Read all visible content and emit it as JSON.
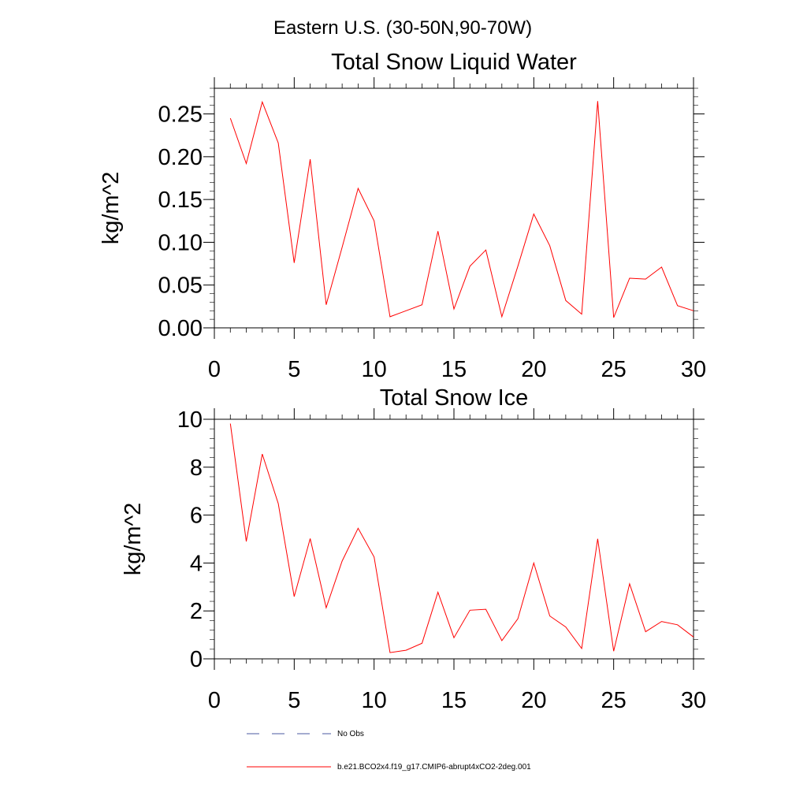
{
  "figure": {
    "title": "Eastern U.S. (30-50N,90-70W)"
  },
  "chart_data": [
    {
      "type": "line",
      "title": "Total Snow Liquid Water",
      "xlabel": "",
      "ylabel": "kg/m^2",
      "xlim": [
        0,
        30
      ],
      "ylim": [
        0,
        0.28
      ],
      "x_ticks": [
        0,
        5,
        10,
        15,
        20,
        25,
        30
      ],
      "x_tick_labels": [
        "0",
        "5",
        "10",
        "15",
        "20",
        "25",
        "30"
      ],
      "y_ticks": [
        0,
        0.05,
        0.1,
        0.15,
        0.2,
        0.25
      ],
      "y_tick_labels": [
        "0.00",
        "0.05",
        "0.10",
        "0.15",
        "0.20",
        "0.25"
      ],
      "grid": false,
      "series": [
        {
          "name": "b.e21.BCO2x4.f19_g17.CMIP6-abrupt4xCO2-2deg.001",
          "color": "#ff0000",
          "x": [
            1,
            2,
            3,
            4,
            5,
            6,
            7,
            8,
            9,
            10,
            11,
            12,
            13,
            14,
            15,
            16,
            17,
            18,
            19,
            20,
            21,
            22,
            23,
            24,
            25,
            26,
            27,
            28,
            29,
            30
          ],
          "values": [
            0.245,
            0.192,
            0.264,
            0.216,
            0.076,
            0.197,
            0.027,
            0.094,
            0.163,
            0.125,
            0.013,
            0.02,
            0.027,
            0.113,
            0.022,
            0.072,
            0.091,
            0.013,
            0.072,
            0.133,
            0.096,
            0.032,
            0.016,
            0.265,
            0.012,
            0.058,
            0.057,
            0.071,
            0.026,
            0.02
          ]
        }
      ]
    },
    {
      "type": "line",
      "title": "Total Snow Ice",
      "xlabel": "",
      "ylabel": "kg/m^2",
      "xlim": [
        0,
        30
      ],
      "ylim": [
        0,
        10
      ],
      "x_ticks": [
        0,
        5,
        10,
        15,
        20,
        25,
        30
      ],
      "x_tick_labels": [
        "0",
        "5",
        "10",
        "15",
        "20",
        "25",
        "30"
      ],
      "y_ticks": [
        0,
        2,
        4,
        6,
        8,
        10
      ],
      "y_tick_labels": [
        "0",
        "2",
        "4",
        "6",
        "8",
        "10"
      ],
      "grid": false,
      "series": [
        {
          "name": "b.e21.BCO2x4.f19_g17.CMIP6-abrupt4xCO2-2deg.001",
          "color": "#ff0000",
          "x": [
            1,
            2,
            3,
            4,
            5,
            6,
            7,
            8,
            9,
            10,
            11,
            12,
            13,
            14,
            15,
            16,
            17,
            18,
            19,
            20,
            21,
            22,
            23,
            24,
            25,
            26,
            27,
            28,
            29,
            30
          ],
          "values": [
            9.82,
            4.9,
            8.55,
            6.48,
            2.6,
            5.02,
            2.13,
            4.08,
            5.45,
            4.25,
            0.26,
            0.36,
            0.65,
            2.78,
            0.88,
            2.03,
            2.07,
            0.76,
            1.67,
            4.0,
            1.79,
            1.33,
            0.43,
            5.01,
            0.32,
            3.13,
            1.13,
            1.56,
            1.42,
            0.91
          ]
        }
      ]
    }
  ],
  "legend": {
    "placement": "bottom-left",
    "entries": [
      {
        "label": "No Obs",
        "style": "dashed",
        "color": "#4b5aa0"
      },
      {
        "label": "b.e21.BCO2x4.f19_g17.CMIP6-abrupt4xCO2-2deg.001",
        "style": "solid",
        "color": "#ff0000"
      }
    ]
  }
}
